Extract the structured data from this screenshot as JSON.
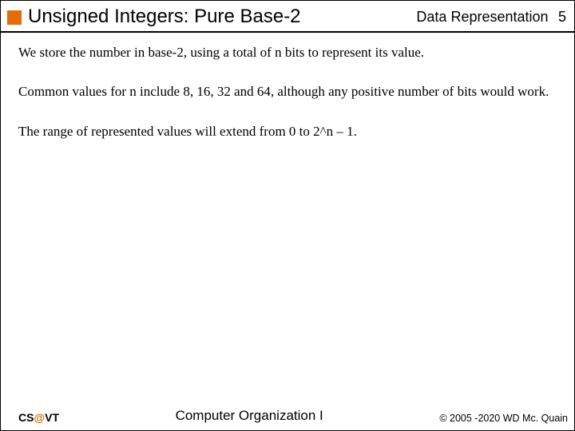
{
  "colors": {
    "accent_square": "#e36c09",
    "rule": "#000000",
    "background": "#ffffff",
    "text": "#000000",
    "at_symbol": "#d96c00"
  },
  "header": {
    "title": "Unsigned Integers: Pure Base-2",
    "topic": "Data Representation",
    "page_number": "5",
    "title_fontsize": 24,
    "topic_fontsize": 18
  },
  "body": {
    "paragraphs": [
      "We store the number in base-2, using a total of n bits to represent its value.",
      "Common values for n include 8, 16, 32 and 64, although any positive number of bits would work.",
      "The range of represented values will extend from 0 to 2^n – 1."
    ],
    "fontsize": 17
  },
  "footer": {
    "left_prefix": "CS",
    "left_at": "@",
    "left_suffix": "VT",
    "center": "Computer Organization I",
    "right": "© 2005 -2020 WD Mc. Quain"
  }
}
